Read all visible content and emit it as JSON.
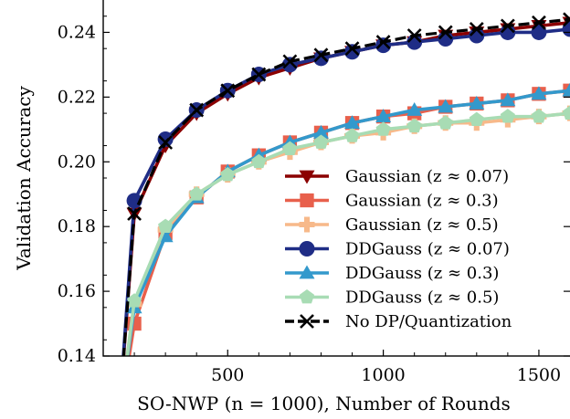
{
  "chart_data": {
    "type": "line",
    "title": "",
    "xlabel": "SO-NWP (n = 1000), Number of Rounds",
    "ylabel": "Validation Accuracy",
    "xlim": [
      100,
      1600
    ],
    "ylim": [
      0.14,
      0.25
    ],
    "x_ticks": [
      500,
      1000,
      1500
    ],
    "x_tick_labels": [
      "500",
      "1000",
      "1500"
    ],
    "y_ticks": [
      0.14,
      0.16,
      0.18,
      0.2,
      0.22,
      0.24
    ],
    "y_tick_labels": [
      "0.14",
      "0.16",
      "0.18",
      "0.20",
      "0.22",
      "0.24"
    ],
    "grid": false,
    "legend_position": "lower-right",
    "series": [
      {
        "name": "Gaussian (z ≈ 0.07)",
        "color": "#8b0000",
        "marker": "triangle-down",
        "dashed": false,
        "x": [
          150,
          200,
          300,
          400,
          500,
          600,
          700,
          800,
          900,
          1000,
          1100,
          1200,
          1300,
          1400,
          1500,
          1600
        ],
        "y": [
          0.12,
          0.184,
          0.205,
          0.215,
          0.221,
          0.226,
          0.229,
          0.232,
          0.234,
          0.236,
          0.237,
          0.239,
          0.24,
          0.241,
          0.242,
          0.243
        ]
      },
      {
        "name": "Gaussian (z ≈ 0.3)",
        "color": "#e8604c",
        "marker": "square",
        "dashed": false,
        "x": [
          150,
          200,
          300,
          400,
          500,
          600,
          700,
          800,
          900,
          1000,
          1100,
          1200,
          1300,
          1400,
          1500,
          1600
        ],
        "y": [
          0.12,
          0.15,
          0.178,
          0.189,
          0.197,
          0.202,
          0.206,
          0.209,
          0.212,
          0.214,
          0.215,
          0.217,
          0.218,
          0.219,
          0.221,
          0.222
        ]
      },
      {
        "name": "Gaussian (z ≈ 0.5)",
        "color": "#f7b98a",
        "marker": "plus",
        "dashed": false,
        "x": [
          150,
          200,
          300,
          400,
          500,
          600,
          700,
          800,
          900,
          1000,
          1100,
          1200,
          1300,
          1400,
          1500,
          1600
        ],
        "y": [
          0.12,
          0.156,
          0.179,
          0.19,
          0.196,
          0.2,
          0.203,
          0.206,
          0.208,
          0.209,
          0.211,
          0.212,
          0.212,
          0.213,
          0.214,
          0.215
        ]
      },
      {
        "name": "DDGauss (z ≈ 0.07)",
        "color": "#1f2d86",
        "marker": "circle",
        "dashed": false,
        "x": [
          150,
          200,
          300,
          400,
          500,
          600,
          700,
          800,
          900,
          1000,
          1100,
          1200,
          1300,
          1400,
          1500,
          1600
        ],
        "y": [
          0.12,
          0.188,
          0.207,
          0.216,
          0.222,
          0.227,
          0.23,
          0.232,
          0.234,
          0.236,
          0.237,
          0.238,
          0.239,
          0.24,
          0.24,
          0.241
        ]
      },
      {
        "name": "DDGauss (z ≈ 0.3)",
        "color": "#3399cc",
        "marker": "triangle-up",
        "dashed": false,
        "x": [
          150,
          200,
          300,
          400,
          500,
          600,
          700,
          800,
          900,
          1000,
          1100,
          1200,
          1300,
          1400,
          1500,
          1600
        ],
        "y": [
          0.12,
          0.155,
          0.177,
          0.189,
          0.197,
          0.202,
          0.206,
          0.209,
          0.212,
          0.214,
          0.216,
          0.217,
          0.218,
          0.219,
          0.221,
          0.222
        ]
      },
      {
        "name": "DDGauss (z ≈ 0.5)",
        "color": "#a8dcb4",
        "marker": "pentagon",
        "dashed": false,
        "x": [
          150,
          200,
          300,
          400,
          500,
          600,
          700,
          800,
          900,
          1000,
          1100,
          1200,
          1300,
          1400,
          1500,
          1600
        ],
        "y": [
          0.12,
          0.157,
          0.18,
          0.19,
          0.196,
          0.2,
          0.204,
          0.206,
          0.208,
          0.21,
          0.211,
          0.212,
          0.213,
          0.214,
          0.214,
          0.215
        ]
      },
      {
        "name": "No DP/Quantization",
        "color": "#000000",
        "marker": "x",
        "dashed": true,
        "x": [
          150,
          200,
          300,
          400,
          500,
          600,
          700,
          800,
          900,
          1000,
          1100,
          1200,
          1300,
          1400,
          1500,
          1600
        ],
        "y": [
          0.12,
          0.184,
          0.206,
          0.216,
          0.222,
          0.227,
          0.231,
          0.233,
          0.235,
          0.237,
          0.239,
          0.24,
          0.241,
          0.242,
          0.243,
          0.244
        ]
      }
    ]
  }
}
